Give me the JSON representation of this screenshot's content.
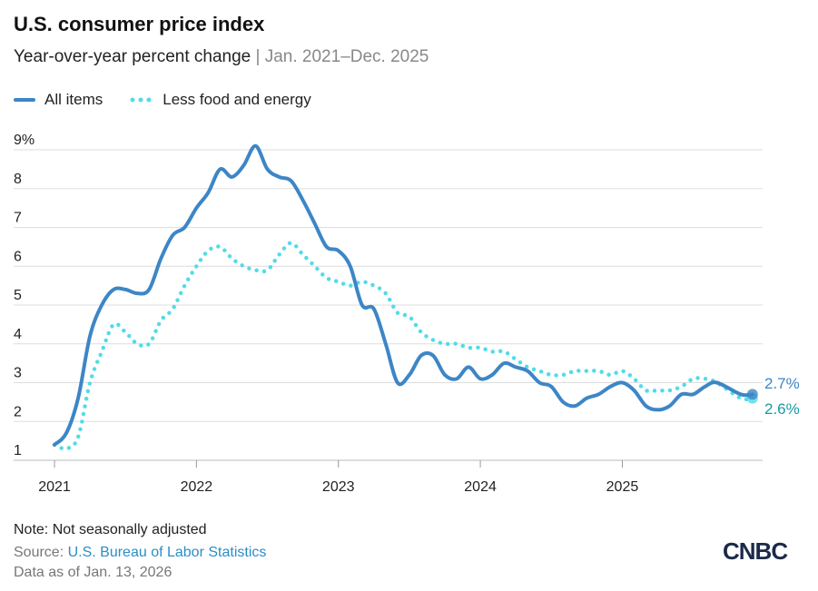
{
  "chart_data": {
    "type": "line",
    "title": "U.S. consumer price index",
    "subtitle": "Year-over-year percent change",
    "subtitle_range": "Jan. 2021–Dec. 2025",
    "ylim": [
      1,
      9
    ],
    "yticks": [
      "1",
      "2",
      "3",
      "4",
      "5",
      "6",
      "7",
      "8",
      "9%"
    ],
    "xticks": [
      "2021",
      "2022",
      "2023",
      "2024",
      "2025"
    ],
    "grid": true,
    "legend_placement": "top-left",
    "series": [
      {
        "name": "All items",
        "color": "#3d86c6",
        "style": "solid",
        "end_label": "2.7%",
        "values": [
          1.4,
          1.7,
          2.6,
          4.2,
          5.0,
          5.4,
          5.4,
          5.3,
          5.4,
          6.2,
          6.8,
          7.0,
          7.5,
          7.9,
          8.5,
          8.3,
          8.6,
          9.1,
          8.5,
          8.3,
          8.2,
          7.7,
          7.1,
          6.5,
          6.4,
          6.0,
          5.0,
          4.9,
          4.0,
          3.0,
          3.2,
          3.7,
          3.7,
          3.2,
          3.1,
          3.4,
          3.1,
          3.2,
          3.5,
          3.4,
          3.3,
          3.0,
          2.9,
          2.5,
          2.4,
          2.6,
          2.7,
          2.9,
          3.0,
          2.8,
          2.4,
          2.3,
          2.4,
          2.7,
          2.7,
          2.9,
          3.0,
          null,
          2.7,
          2.7
        ]
      },
      {
        "name": "Less food and energy",
        "color": "#52dbe9",
        "style": "dotted",
        "end_label": "2.6%",
        "end_label_color": "#1a9aa3",
        "values": [
          1.4,
          1.3,
          1.6,
          3.0,
          3.8,
          4.5,
          4.3,
          4.0,
          4.0,
          4.6,
          4.9,
          5.5,
          6.0,
          6.4,
          6.5,
          6.2,
          6.0,
          5.9,
          5.9,
          6.3,
          6.6,
          6.3,
          6.0,
          5.7,
          5.6,
          5.5,
          5.6,
          5.5,
          5.3,
          4.8,
          4.7,
          4.3,
          4.1,
          4.0,
          4.0,
          3.9,
          3.9,
          3.8,
          3.8,
          3.6,
          3.4,
          3.3,
          3.2,
          3.2,
          3.3,
          3.3,
          3.3,
          3.2,
          3.3,
          3.1,
          2.8,
          2.8,
          2.8,
          2.9,
          3.1,
          3.1,
          3.0,
          null,
          2.6,
          2.6
        ]
      }
    ]
  },
  "footer": {
    "note": "Note: Not seasonally adjusted",
    "source_prefix": "Source: ",
    "source_link": "U.S. Bureau of Labor Statistics",
    "data_as_of": "Data as of Jan. 13, 2026"
  },
  "brand": {
    "logo": "CNBC"
  }
}
